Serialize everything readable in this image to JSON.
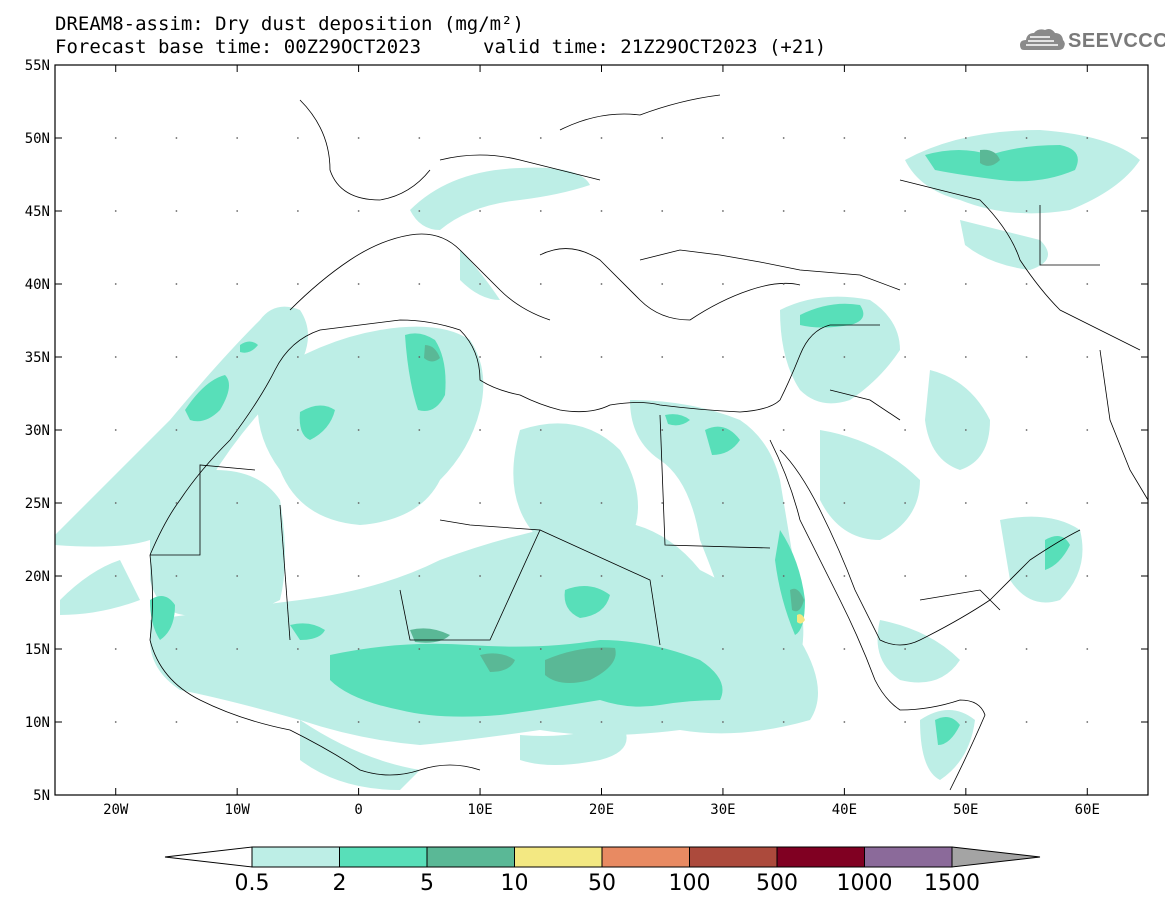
{
  "title": {
    "line1": "DREAM8-assim: Dry dust deposition (mg/m²)",
    "line2": "Forecast base time: 00Z29OCT2023",
    "line3": "valid time: 21Z29OCT2023 (+21)"
  },
  "logo": {
    "text": "SEEVCCC",
    "icon": "cloud-logo-icon"
  },
  "map": {
    "lon_range": [
      -25,
      65
    ],
    "lat_range": [
      5,
      55
    ],
    "lat_ticks": [
      "55N",
      "50N",
      "45N",
      "40N",
      "35N",
      "30N",
      "25N",
      "20N",
      "15N",
      "10N",
      "5N"
    ],
    "lon_ticks": [
      "20W",
      "10W",
      "0",
      "10E",
      "20E",
      "30E",
      "40E",
      "50E",
      "60E"
    ],
    "colors": {
      "land_line": "#000000",
      "grid": "#000000"
    }
  },
  "colorbar": {
    "labels": [
      "0.5",
      "2",
      "5",
      "10",
      "50",
      "100",
      "500",
      "1000",
      "1500"
    ],
    "colors": [
      "#bdeee6",
      "#58dfb9",
      "#5ab896",
      "#f3e882",
      "#e88a62",
      "#ac4a3c",
      "#800022",
      "#8b6a9a",
      "#a4a4a4"
    ],
    "under_color": "#ffffff",
    "over_color": "#a4a4a4"
  }
}
